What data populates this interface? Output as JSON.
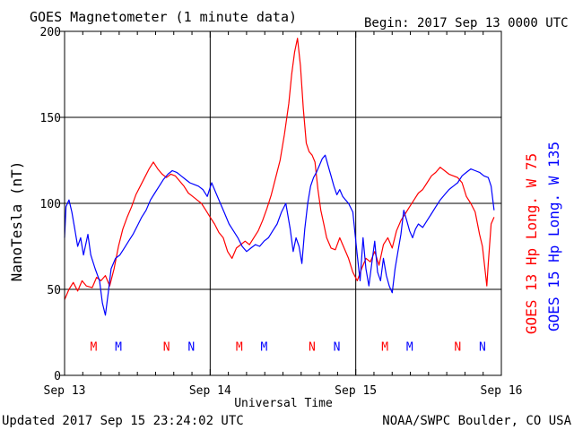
{
  "chart_data": {
    "type": "line",
    "title": "GOES Magnetometer (1 minute data)",
    "begin_label": "Begin:  2017 Sep 13 0000 UTC",
    "xlabel": "Universal Time",
    "ylabel": "NanoTesla (nT)",
    "ylim": [
      0,
      200
    ],
    "xlim_days": [
      0,
      3
    ],
    "yticks": [
      0,
      50,
      100,
      150,
      200
    ],
    "xticks": [
      {
        "day": 0,
        "label": "Sep 13"
      },
      {
        "day": 1,
        "label": "Sep 14"
      },
      {
        "day": 2,
        "label": "Sep 15"
      },
      {
        "day": 3,
        "label": "Sep 16"
      }
    ],
    "grid": true,
    "legend_placement": "right",
    "series": [
      {
        "name": "GOES 13 Hp  Long. W 75",
        "color": "#ff0000",
        "points": [
          [
            0.0,
            44
          ],
          [
            0.03,
            50
          ],
          [
            0.06,
            54
          ],
          [
            0.09,
            49
          ],
          [
            0.12,
            55
          ],
          [
            0.15,
            52
          ],
          [
            0.19,
            51
          ],
          [
            0.22,
            57
          ],
          [
            0.25,
            55
          ],
          [
            0.28,
            58
          ],
          [
            0.31,
            52
          ],
          [
            0.34,
            62
          ],
          [
            0.37,
            75
          ],
          [
            0.4,
            85
          ],
          [
            0.43,
            92
          ],
          [
            0.46,
            98
          ],
          [
            0.49,
            105
          ],
          [
            0.52,
            110
          ],
          [
            0.55,
            115
          ],
          [
            0.58,
            120
          ],
          [
            0.61,
            124
          ],
          [
            0.64,
            120
          ],
          [
            0.67,
            117
          ],
          [
            0.7,
            115
          ],
          [
            0.73,
            117
          ],
          [
            0.76,
            116
          ],
          [
            0.79,
            113
          ],
          [
            0.82,
            110
          ],
          [
            0.85,
            106
          ],
          [
            0.88,
            104
          ],
          [
            0.91,
            102
          ],
          [
            0.94,
            100
          ],
          [
            0.97,
            96
          ],
          [
            1.0,
            92
          ],
          [
            1.03,
            88
          ],
          [
            1.06,
            83
          ],
          [
            1.09,
            80
          ],
          [
            1.12,
            72
          ],
          [
            1.15,
            68
          ],
          [
            1.18,
            74
          ],
          [
            1.21,
            76
          ],
          [
            1.24,
            78
          ],
          [
            1.27,
            76
          ],
          [
            1.3,
            80
          ],
          [
            1.33,
            84
          ],
          [
            1.36,
            90
          ],
          [
            1.39,
            97
          ],
          [
            1.42,
            105
          ],
          [
            1.45,
            115
          ],
          [
            1.48,
            125
          ],
          [
            1.51,
            140
          ],
          [
            1.54,
            158
          ],
          [
            1.56,
            175
          ],
          [
            1.58,
            188
          ],
          [
            1.6,
            196
          ],
          [
            1.62,
            180
          ],
          [
            1.64,
            155
          ],
          [
            1.66,
            135
          ],
          [
            1.68,
            130
          ],
          [
            1.7,
            128
          ],
          [
            1.72,
            124
          ],
          [
            1.74,
            108
          ],
          [
            1.76,
            96
          ],
          [
            1.78,
            88
          ],
          [
            1.8,
            80
          ],
          [
            1.83,
            74
          ],
          [
            1.86,
            73
          ],
          [
            1.89,
            80
          ],
          [
            1.92,
            74
          ],
          [
            1.95,
            68
          ],
          [
            1.98,
            60
          ],
          [
            2.01,
            55
          ],
          [
            2.04,
            62
          ],
          [
            2.07,
            68
          ],
          [
            2.1,
            66
          ],
          [
            2.13,
            72
          ],
          [
            2.16,
            64
          ],
          [
            2.19,
            76
          ],
          [
            2.22,
            80
          ],
          [
            2.25,
            74
          ],
          [
            2.28,
            84
          ],
          [
            2.31,
            90
          ],
          [
            2.34,
            94
          ],
          [
            2.37,
            98
          ],
          [
            2.4,
            102
          ],
          [
            2.43,
            106
          ],
          [
            2.46,
            108
          ],
          [
            2.49,
            112
          ],
          [
            2.52,
            116
          ],
          [
            2.55,
            118
          ],
          [
            2.58,
            121
          ],
          [
            2.61,
            119
          ],
          [
            2.64,
            117
          ],
          [
            2.67,
            116
          ],
          [
            2.7,
            115
          ],
          [
            2.73,
            112
          ],
          [
            2.76,
            104
          ],
          [
            2.79,
            100
          ],
          [
            2.82,
            95
          ],
          [
            2.85,
            82
          ],
          [
            2.87,
            75
          ],
          [
            2.89,
            60
          ],
          [
            2.9,
            52
          ],
          [
            2.91,
            65
          ],
          [
            2.93,
            88
          ],
          [
            2.95,
            92
          ]
        ]
      },
      {
        "name": "GOES 15 Hp  Long. W 135",
        "color": "#0000ff",
        "points": [
          [
            0.0,
            80
          ],
          [
            0.01,
            98
          ],
          [
            0.03,
            102
          ],
          [
            0.05,
            95
          ],
          [
            0.07,
            85
          ],
          [
            0.09,
            75
          ],
          [
            0.11,
            80
          ],
          [
            0.13,
            70
          ],
          [
            0.16,
            82
          ],
          [
            0.18,
            70
          ],
          [
            0.21,
            62
          ],
          [
            0.24,
            55
          ],
          [
            0.26,
            42
          ],
          [
            0.28,
            35
          ],
          [
            0.3,
            48
          ],
          [
            0.32,
            62
          ],
          [
            0.35,
            68
          ],
          [
            0.38,
            70
          ],
          [
            0.41,
            74
          ],
          [
            0.44,
            78
          ],
          [
            0.47,
            82
          ],
          [
            0.5,
            87
          ],
          [
            0.53,
            92
          ],
          [
            0.56,
            96
          ],
          [
            0.59,
            102
          ],
          [
            0.62,
            106
          ],
          [
            0.65,
            110
          ],
          [
            0.68,
            114
          ],
          [
            0.71,
            117
          ],
          [
            0.74,
            119
          ],
          [
            0.77,
            118
          ],
          [
            0.8,
            116
          ],
          [
            0.83,
            114
          ],
          [
            0.86,
            112
          ],
          [
            0.89,
            111
          ],
          [
            0.92,
            110
          ],
          [
            0.95,
            108
          ],
          [
            0.98,
            104
          ],
          [
            1.01,
            112
          ],
          [
            1.04,
            106
          ],
          [
            1.07,
            100
          ],
          [
            1.1,
            94
          ],
          [
            1.13,
            88
          ],
          [
            1.16,
            84
          ],
          [
            1.19,
            80
          ],
          [
            1.22,
            75
          ],
          [
            1.25,
            72
          ],
          [
            1.28,
            74
          ],
          [
            1.31,
            76
          ],
          [
            1.34,
            75
          ],
          [
            1.37,
            78
          ],
          [
            1.4,
            80
          ],
          [
            1.43,
            84
          ],
          [
            1.46,
            88
          ],
          [
            1.49,
            95
          ],
          [
            1.52,
            100
          ],
          [
            1.55,
            85
          ],
          [
            1.57,
            72
          ],
          [
            1.59,
            80
          ],
          [
            1.61,
            75
          ],
          [
            1.63,
            65
          ],
          [
            1.65,
            85
          ],
          [
            1.67,
            100
          ],
          [
            1.69,
            110
          ],
          [
            1.71,
            115
          ],
          [
            1.73,
            118
          ],
          [
            1.75,
            122
          ],
          [
            1.77,
            126
          ],
          [
            1.79,
            128
          ],
          [
            1.81,
            122
          ],
          [
            1.83,
            116
          ],
          [
            1.85,
            110
          ],
          [
            1.87,
            105
          ],
          [
            1.89,
            108
          ],
          [
            1.91,
            104
          ],
          [
            1.93,
            102
          ],
          [
            1.95,
            100
          ],
          [
            1.98,
            95
          ],
          [
            2.01,
            70
          ],
          [
            2.03,
            55
          ],
          [
            2.05,
            80
          ],
          [
            2.07,
            62
          ],
          [
            2.09,
            52
          ],
          [
            2.11,
            65
          ],
          [
            2.13,
            78
          ],
          [
            2.15,
            60
          ],
          [
            2.17,
            55
          ],
          [
            2.19,
            68
          ],
          [
            2.21,
            58
          ],
          [
            2.23,
            52
          ],
          [
            2.25,
            48
          ],
          [
            2.27,
            62
          ],
          [
            2.29,
            72
          ],
          [
            2.31,
            82
          ],
          [
            2.33,
            96
          ],
          [
            2.35,
            90
          ],
          [
            2.37,
            84
          ],
          [
            2.39,
            80
          ],
          [
            2.41,
            85
          ],
          [
            2.43,
            88
          ],
          [
            2.46,
            86
          ],
          [
            2.49,
            90
          ],
          [
            2.52,
            94
          ],
          [
            2.55,
            98
          ],
          [
            2.58,
            102
          ],
          [
            2.61,
            105
          ],
          [
            2.64,
            108
          ],
          [
            2.67,
            110
          ],
          [
            2.7,
            112
          ],
          [
            2.73,
            116
          ],
          [
            2.76,
            118
          ],
          [
            2.79,
            120
          ],
          [
            2.82,
            119
          ],
          [
            2.85,
            118
          ],
          [
            2.88,
            116
          ],
          [
            2.91,
            115
          ],
          [
            2.93,
            110
          ],
          [
            2.95,
            96
          ]
        ]
      }
    ],
    "annotations": [
      {
        "text": "M",
        "day": 0.2,
        "color": "#ff0000"
      },
      {
        "text": "M",
        "day": 0.37,
        "color": "#0000ff"
      },
      {
        "text": "N",
        "day": 0.7,
        "color": "#ff0000"
      },
      {
        "text": "N",
        "day": 0.87,
        "color": "#0000ff"
      },
      {
        "text": "M",
        "day": 1.2,
        "color": "#ff0000"
      },
      {
        "text": "M",
        "day": 1.37,
        "color": "#0000ff"
      },
      {
        "text": "N",
        "day": 1.7,
        "color": "#ff0000"
      },
      {
        "text": "N",
        "day": 1.87,
        "color": "#0000ff"
      },
      {
        "text": "M",
        "day": 2.2,
        "color": "#ff0000"
      },
      {
        "text": "M",
        "day": 2.37,
        "color": "#0000ff"
      },
      {
        "text": "N",
        "day": 2.7,
        "color": "#ff0000"
      },
      {
        "text": "N",
        "day": 2.87,
        "color": "#0000ff"
      }
    ],
    "annotation_level": 17
  },
  "footer": {
    "updated": "Updated 2017 Sep 15 23:24:02 UTC",
    "credit": "NOAA/SWPC Boulder, CO USA"
  }
}
